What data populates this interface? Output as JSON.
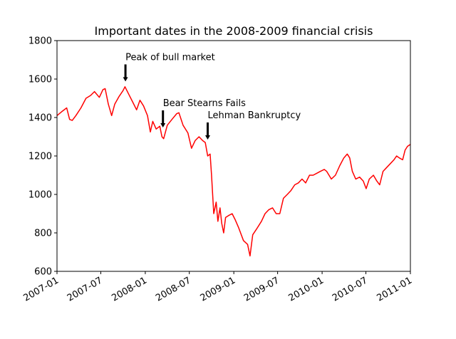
{
  "chart_data": {
    "type": "line",
    "title": "Important dates in the 2008-2009 financial crisis",
    "xlabel": "",
    "ylabel": "",
    "xlim": [
      "2007-01-01",
      "2011-01-01"
    ],
    "ylim": [
      600,
      1800
    ],
    "grid": false,
    "line_color": "#ff0000",
    "x_ticks": [
      "2007-01",
      "2007-07",
      "2008-01",
      "2008-07",
      "2009-01",
      "2009-07",
      "2010-01",
      "2010-07",
      "2011-01"
    ],
    "y_ticks": [
      "600",
      "800",
      "1000",
      "1200",
      "1400",
      "1600",
      "1800"
    ],
    "series": [
      {
        "x": [
          "2007-01-01",
          "2007-01-20",
          "2007-02-10",
          "2007-02-22",
          "2007-03-05",
          "2007-03-20",
          "2007-04-10",
          "2007-05-01",
          "2007-05-20",
          "2007-06-05",
          "2007-06-25",
          "2007-07-10",
          "2007-07-19",
          "2007-08-01",
          "2007-08-15",
          "2007-08-28",
          "2007-09-15",
          "2007-10-01",
          "2007-10-09",
          "2007-10-25",
          "2007-11-10",
          "2007-11-26",
          "2007-12-10",
          "2007-12-25",
          "2008-01-10",
          "2008-01-22",
          "2008-02-01",
          "2008-02-15",
          "2008-03-01",
          "2008-03-10",
          "2008-03-17",
          "2008-04-01",
          "2008-04-20",
          "2008-05-10",
          "2008-05-19",
          "2008-06-05",
          "2008-06-25",
          "2008-07-10",
          "2008-07-25",
          "2008-08-10",
          "2008-08-25",
          "2008-09-05",
          "2008-09-15",
          "2008-09-25",
          "2008-10-01",
          "2008-10-10",
          "2008-10-20",
          "2008-10-27",
          "2008-11-05",
          "2008-11-12",
          "2008-11-20",
          "2008-11-28",
          "2008-12-10",
          "2008-12-25",
          "2009-01-06",
          "2009-01-20",
          "2009-02-10",
          "2009-02-27",
          "2009-03-09",
          "2009-03-20",
          "2009-04-05",
          "2009-04-25",
          "2009-05-10",
          "2009-05-25",
          "2009-06-10",
          "2009-06-25",
          "2009-07-10",
          "2009-07-25",
          "2009-08-10",
          "2009-08-25",
          "2009-09-10",
          "2009-09-25",
          "2009-10-10",
          "2009-10-25",
          "2009-11-10",
          "2009-11-25",
          "2009-12-10",
          "2009-12-25",
          "2010-01-10",
          "2010-01-20",
          "2010-02-08",
          "2010-02-25",
          "2010-03-15",
          "2010-04-01",
          "2010-04-15",
          "2010-04-25",
          "2010-05-06",
          "2010-05-20",
          "2010-06-05",
          "2010-06-20",
          "2010-07-02",
          "2010-07-15",
          "2010-08-01",
          "2010-08-15",
          "2010-08-27",
          "2010-09-10",
          "2010-09-25",
          "2010-10-10",
          "2010-10-25",
          "2010-11-05",
          "2010-11-16",
          "2010-11-30",
          "2010-12-10",
          "2010-12-20",
          "2011-01-01"
        ],
        "values": [
          1410,
          1430,
          1450,
          1390,
          1385,
          1410,
          1450,
          1500,
          1515,
          1535,
          1505,
          1545,
          1550,
          1470,
          1410,
          1470,
          1510,
          1540,
          1560,
          1520,
          1480,
          1440,
          1490,
          1460,
          1410,
          1325,
          1380,
          1340,
          1355,
          1300,
          1290,
          1360,
          1390,
          1420,
          1425,
          1360,
          1320,
          1240,
          1280,
          1300,
          1280,
          1270,
          1200,
          1210,
          1100,
          900,
          960,
          860,
          930,
          850,
          800,
          880,
          890,
          900,
          870,
          830,
          760,
          740,
          680,
          790,
          820,
          860,
          900,
          920,
          930,
          900,
          900,
          980,
          1000,
          1020,
          1050,
          1060,
          1080,
          1060,
          1100,
          1100,
          1110,
          1120,
          1130,
          1120,
          1080,
          1100,
          1150,
          1190,
          1210,
          1190,
          1120,
          1080,
          1090,
          1070,
          1030,
          1080,
          1100,
          1070,
          1050,
          1120,
          1140,
          1160,
          1180,
          1200,
          1190,
          1180,
          1230,
          1250,
          1260
        ]
      }
    ],
    "annotations": [
      {
        "text": "Peak of bull market",
        "x": "2007-10-11",
        "y": 1554
      },
      {
        "text": "Bear Stearns Fails",
        "x": "2008-03-14",
        "y": 1315
      },
      {
        "text": "Lehman Bankruptcy",
        "x": "2008-09-15",
        "y": 1252
      }
    ]
  }
}
